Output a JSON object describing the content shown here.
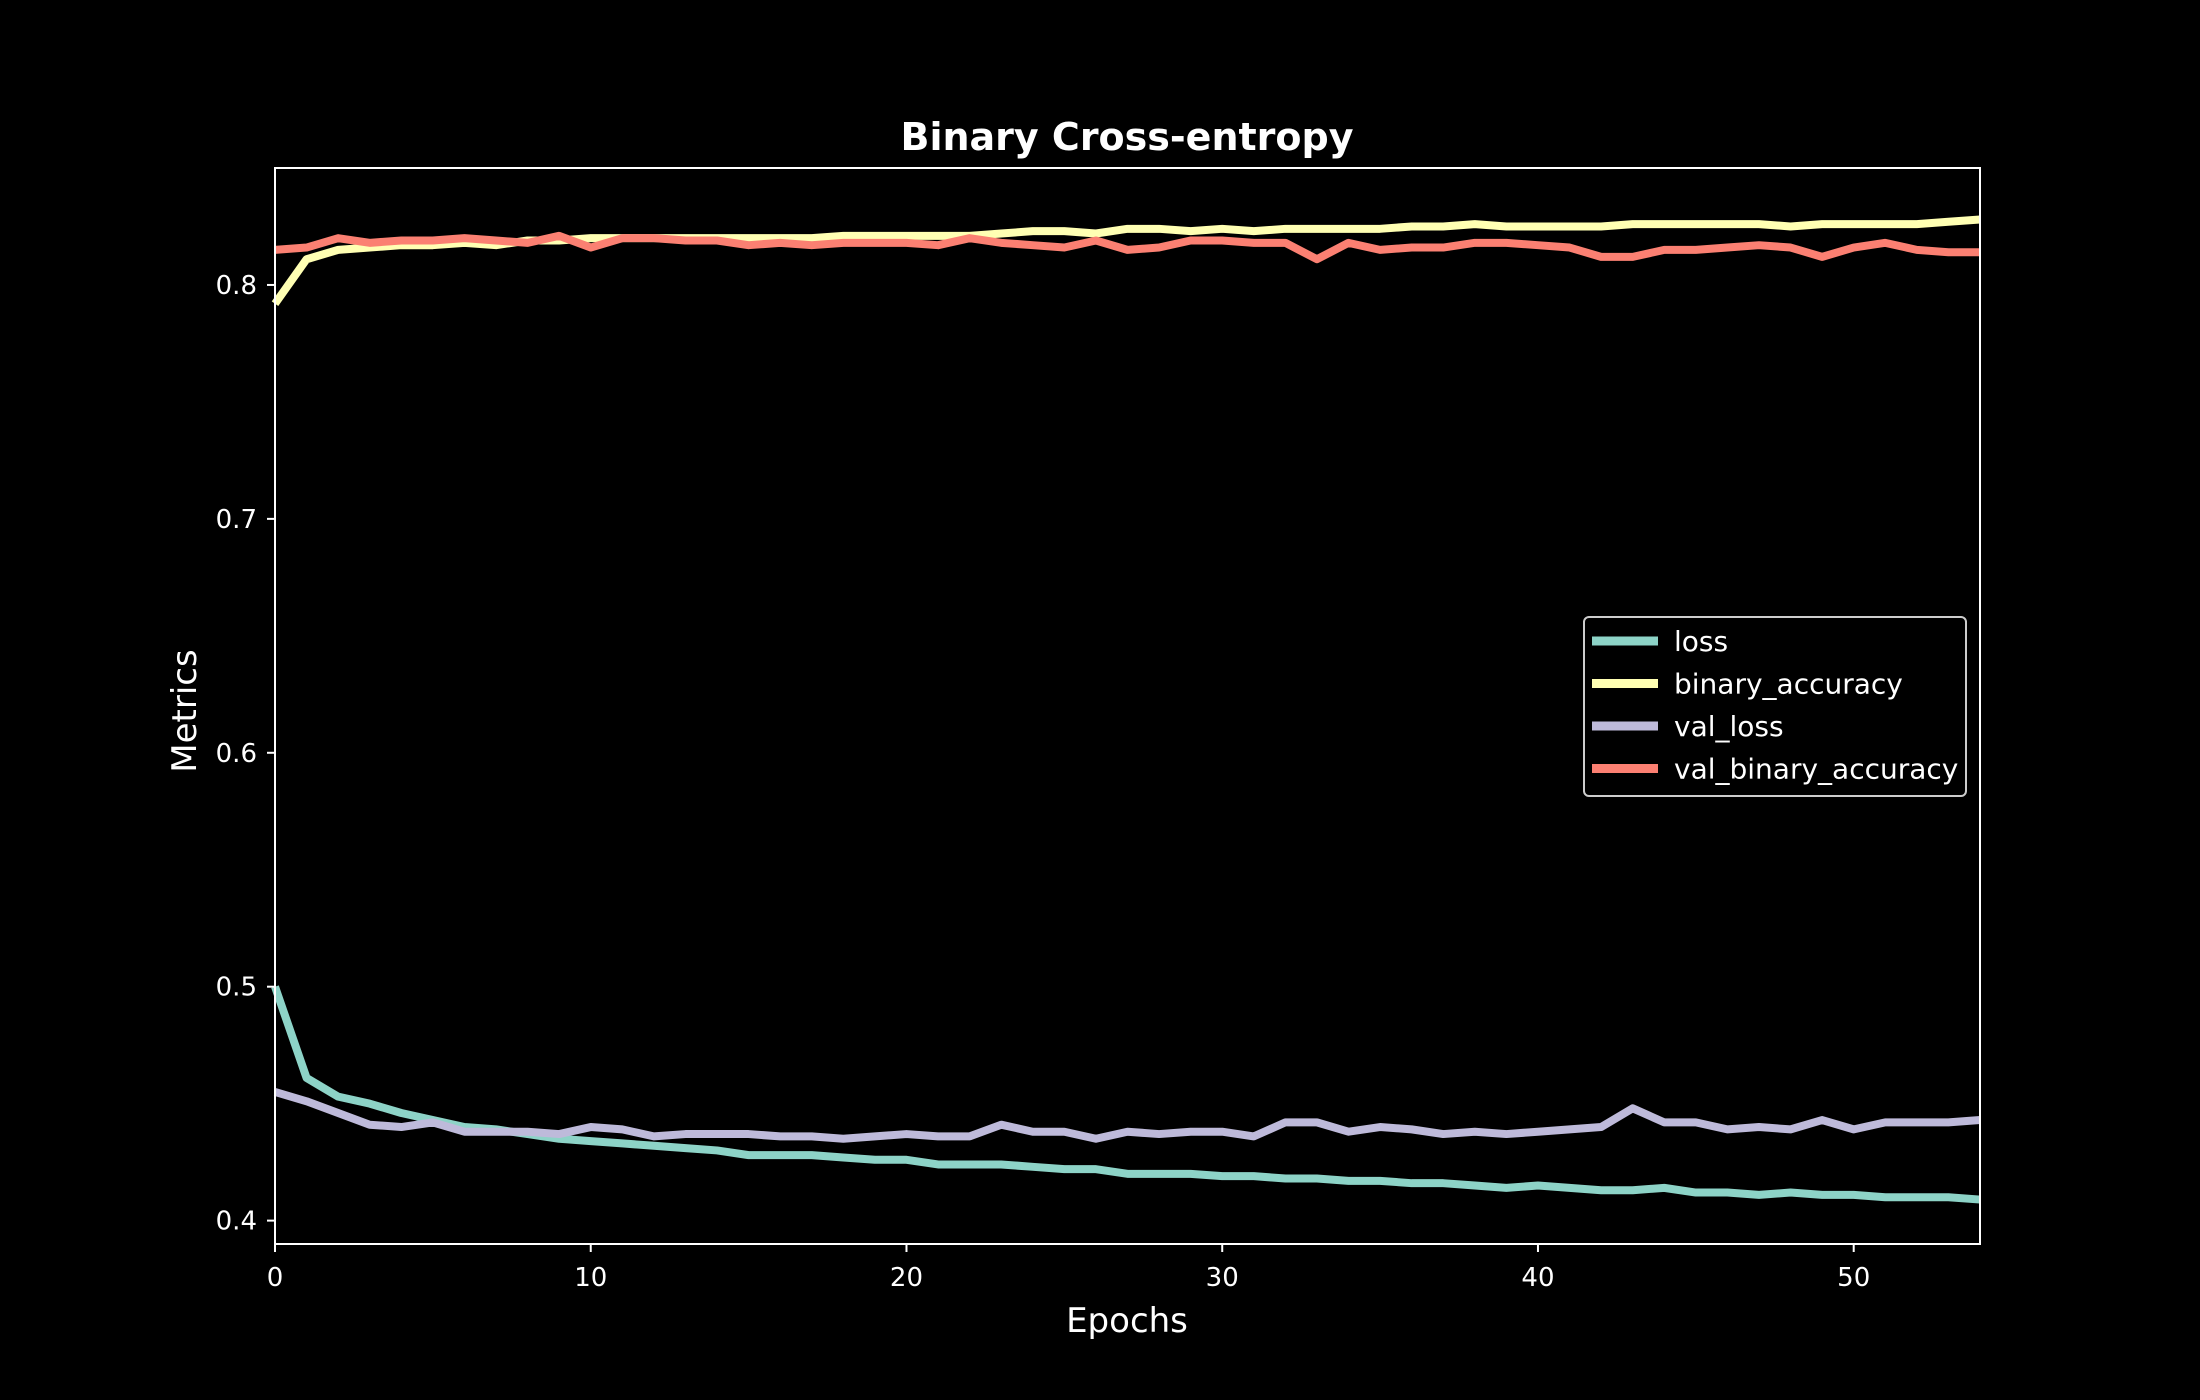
{
  "chart_data": {
    "type": "line",
    "title": "Binary Cross-entropy",
    "xlabel": "Epochs",
    "ylabel": "Metrics",
    "xlim": [
      0,
      54
    ],
    "ylim": [
      0.39,
      0.85
    ],
    "xticks": [
      0,
      10,
      20,
      30,
      40,
      50
    ],
    "yticks": [
      0.4,
      0.5,
      0.6,
      0.7,
      0.8
    ],
    "grid": false,
    "legend_position": "center-right",
    "background": "#000000",
    "x": [
      0,
      1,
      2,
      3,
      4,
      5,
      6,
      7,
      8,
      9,
      10,
      11,
      12,
      13,
      14,
      15,
      16,
      17,
      18,
      19,
      20,
      21,
      22,
      23,
      24,
      25,
      26,
      27,
      28,
      29,
      30,
      31,
      32,
      33,
      34,
      35,
      36,
      37,
      38,
      39,
      40,
      41,
      42,
      43,
      44,
      45,
      46,
      47,
      48,
      49,
      50,
      51,
      52,
      53,
      54
    ],
    "series": [
      {
        "name": "loss",
        "color": "#8dd3c7",
        "values": [
          0.5,
          0.461,
          0.453,
          0.45,
          0.446,
          0.443,
          0.44,
          0.439,
          0.437,
          0.435,
          0.434,
          0.433,
          0.432,
          0.431,
          0.43,
          0.428,
          0.428,
          0.428,
          0.427,
          0.426,
          0.426,
          0.424,
          0.424,
          0.424,
          0.423,
          0.422,
          0.422,
          0.42,
          0.42,
          0.42,
          0.419,
          0.419,
          0.418,
          0.418,
          0.417,
          0.417,
          0.416,
          0.416,
          0.415,
          0.414,
          0.415,
          0.414,
          0.413,
          0.413,
          0.414,
          0.412,
          0.412,
          0.411,
          0.412,
          0.411,
          0.411,
          0.41,
          0.41,
          0.41,
          0.409
        ]
      },
      {
        "name": "binary_accuracy",
        "color": "#ffffb3",
        "values": [
          0.792,
          0.811,
          0.815,
          0.816,
          0.817,
          0.817,
          0.818,
          0.817,
          0.819,
          0.819,
          0.82,
          0.82,
          0.82,
          0.82,
          0.82,
          0.82,
          0.82,
          0.82,
          0.821,
          0.821,
          0.821,
          0.821,
          0.821,
          0.822,
          0.823,
          0.823,
          0.822,
          0.824,
          0.824,
          0.823,
          0.824,
          0.823,
          0.824,
          0.824,
          0.824,
          0.824,
          0.825,
          0.825,
          0.826,
          0.825,
          0.825,
          0.825,
          0.825,
          0.826,
          0.826,
          0.826,
          0.826,
          0.826,
          0.825,
          0.826,
          0.826,
          0.826,
          0.826,
          0.827,
          0.828
        ]
      },
      {
        "name": "val_loss",
        "color": "#bebada",
        "values": [
          0.455,
          0.451,
          0.446,
          0.441,
          0.44,
          0.442,
          0.438,
          0.438,
          0.438,
          0.437,
          0.44,
          0.439,
          0.436,
          0.437,
          0.437,
          0.437,
          0.436,
          0.436,
          0.435,
          0.436,
          0.437,
          0.436,
          0.436,
          0.441,
          0.438,
          0.438,
          0.435,
          0.438,
          0.437,
          0.438,
          0.438,
          0.436,
          0.442,
          0.442,
          0.438,
          0.44,
          0.439,
          0.437,
          0.438,
          0.437,
          0.438,
          0.439,
          0.44,
          0.448,
          0.442,
          0.442,
          0.439,
          0.44,
          0.439,
          0.443,
          0.439,
          0.442,
          0.442,
          0.442,
          0.443
        ]
      },
      {
        "name": "val_binary_accuracy",
        "color": "#fb8072",
        "values": [
          0.815,
          0.816,
          0.82,
          0.818,
          0.819,
          0.819,
          0.82,
          0.819,
          0.818,
          0.821,
          0.816,
          0.82,
          0.82,
          0.819,
          0.819,
          0.817,
          0.818,
          0.817,
          0.818,
          0.818,
          0.818,
          0.817,
          0.82,
          0.818,
          0.817,
          0.816,
          0.819,
          0.815,
          0.816,
          0.819,
          0.819,
          0.818,
          0.818,
          0.811,
          0.818,
          0.815,
          0.816,
          0.816,
          0.818,
          0.818,
          0.817,
          0.816,
          0.812,
          0.812,
          0.815,
          0.815,
          0.816,
          0.817,
          0.816,
          0.812,
          0.816,
          0.818,
          0.815,
          0.814,
          0.814
        ]
      }
    ]
  }
}
